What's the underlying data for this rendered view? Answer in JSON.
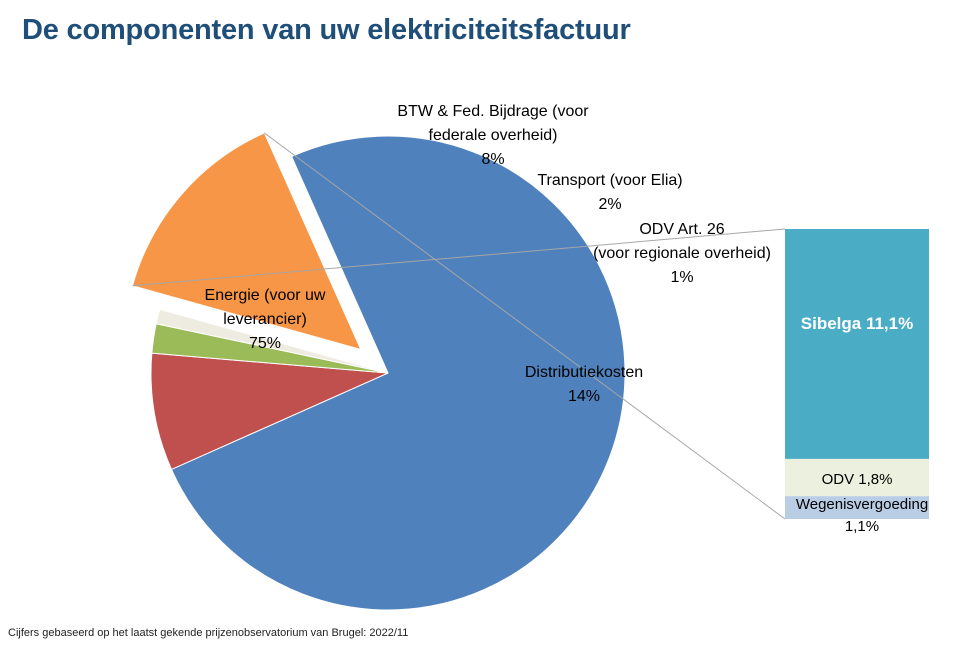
{
  "title": "De componenten van uw elektriciteitsfactuur",
  "footnote": "Cijfers gebaseerd op het laatst gekende prijzenobservatorium van Brugel:  2022/11",
  "chart_data": [
    {
      "type": "pie",
      "slices": [
        {
          "name": "Energie (voor uw leverancier)",
          "label_lines": [
            "Energie (voor uw",
            "leverancier)",
            "75%"
          ],
          "value": 75,
          "color": "#4f81bd",
          "exploded": false
        },
        {
          "name": "BTW & Fed. Bijdrage (voor federale overheid)",
          "label_lines": [
            "BTW & Fed. Bijdrage (voor",
            "federale overheid)",
            "8%"
          ],
          "value": 8,
          "color": "#c0504d",
          "exploded": false
        },
        {
          "name": "Transport (voor Elia)",
          "label_lines": [
            "Transport (voor Elia)",
            "2%"
          ],
          "value": 2,
          "color": "#9bbb59",
          "exploded": false
        },
        {
          "name": "ODV Art. 26 (voor regionale overheid)",
          "label_lines": [
            "ODV Art. 26",
            "(voor regionale overheid)",
            "1%"
          ],
          "value": 1,
          "color": "#eeece1",
          "exploded": false
        },
        {
          "name": "Distributiekosten",
          "label_lines": [
            "Distributiekosten",
            "14%"
          ],
          "value": 14,
          "color": "#f79646",
          "exploded": true
        }
      ]
    },
    {
      "type": "bar",
      "stacked": true,
      "breakdown_of": "Distributiekosten",
      "segments": [
        {
          "label_lines": [
            "Sibelga 11,1%"
          ],
          "value": 11.1,
          "color": "#4bacc6",
          "label_color": "#ffffff",
          "bold": true
        },
        {
          "label_lines": [
            "ODV 1,8%"
          ],
          "value": 1.8,
          "color": "#ebf1de",
          "label_color": "#000000",
          "bold": false
        },
        {
          "label_lines": [
            "Wegenisvergoeding",
            "1,1%"
          ],
          "value": 1.1,
          "color": "#b9cde5",
          "label_color": "#000000",
          "bold": false
        }
      ]
    }
  ]
}
